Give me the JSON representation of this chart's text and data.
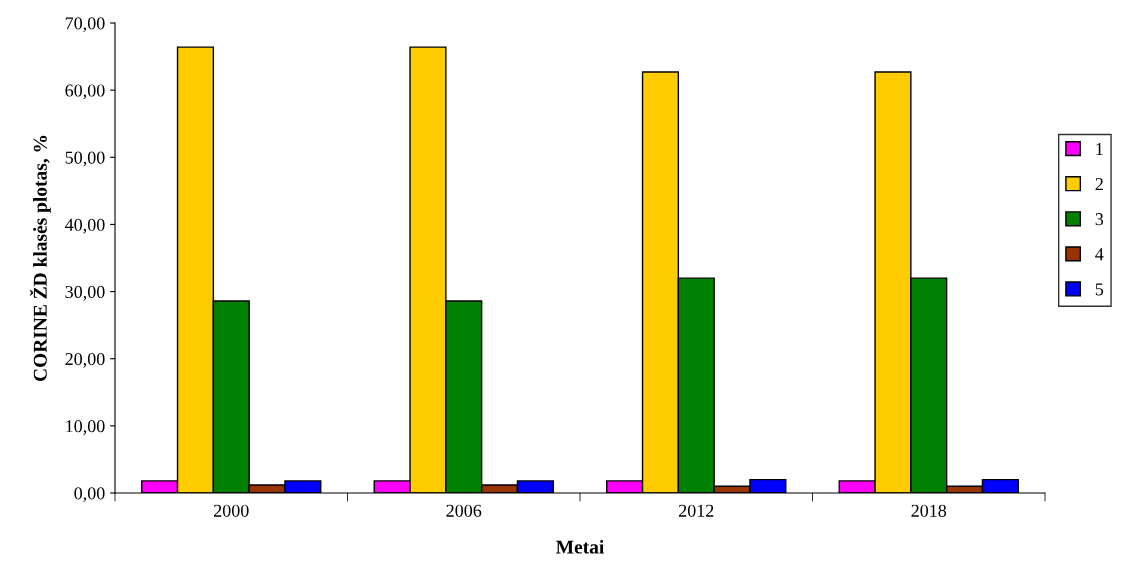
{
  "chart_data": {
    "type": "bar",
    "xlabel": "Metai",
    "ylabel": "CORINE ŽD klasės plotas, %",
    "categories": [
      "2000",
      "2006",
      "2012",
      "2018"
    ],
    "series": [
      {
        "name": "1",
        "color": "#ff00ff",
        "values": [
          1.8,
          1.8,
          1.8,
          1.8
        ]
      },
      {
        "name": "2",
        "color": "#ffcc00",
        "values": [
          66.4,
          66.4,
          62.7,
          62.7
        ]
      },
      {
        "name": "3",
        "color": "#008000",
        "values": [
          28.6,
          28.6,
          32.0,
          32.0
        ]
      },
      {
        "name": "4",
        "color": "#993300",
        "values": [
          1.2,
          1.2,
          1.0,
          1.0
        ]
      },
      {
        "name": "5",
        "color": "#0000ff",
        "values": [
          1.8,
          1.8,
          2.0,
          2.0
        ]
      }
    ],
    "ylim": [
      0,
      70
    ],
    "yticks": [
      {
        "value": 0,
        "label": "0,00"
      },
      {
        "value": 10,
        "label": "10,00"
      },
      {
        "value": 20,
        "label": "20,00"
      },
      {
        "value": 30,
        "label": "30,00"
      },
      {
        "value": 40,
        "label": "40,00"
      },
      {
        "value": 50,
        "label": "50,00"
      },
      {
        "value": 60,
        "label": "60,00"
      },
      {
        "value": 70,
        "label": "70,00"
      }
    ],
    "grid": false,
    "legend": "right"
  }
}
